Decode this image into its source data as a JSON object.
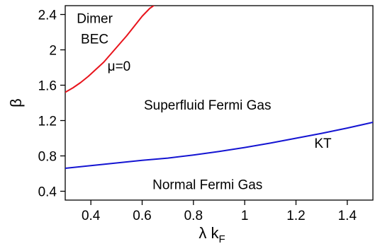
{
  "chart_data": {
    "type": "line",
    "title": "",
    "xlabel": "λ k",
    "xlabel_subscript": "F",
    "ylabel": "β",
    "xlim": [
      0.3,
      1.5
    ],
    "ylim": [
      0.3,
      2.5
    ],
    "grid": false,
    "xticks": [
      {
        "value": 0.4,
        "label": "0.4"
      },
      {
        "value": 0.6,
        "label": "0.6"
      },
      {
        "value": 0.8,
        "label": "0.8"
      },
      {
        "value": 1.0,
        "label": "1"
      },
      {
        "value": 1.2,
        "label": "1.2"
      },
      {
        "value": 1.4,
        "label": "1.4"
      }
    ],
    "yticks": [
      {
        "value": 0.4,
        "label": "0.4"
      },
      {
        "value": 0.8,
        "label": "0.8"
      },
      {
        "value": 1.2,
        "label": "1.2"
      },
      {
        "value": 1.6,
        "label": "1.6"
      },
      {
        "value": 2.0,
        "label": "2"
      },
      {
        "value": 2.4,
        "label": "2.4"
      }
    ],
    "series": [
      {
        "color": "#e8141c",
        "points": [
          [
            0.3,
            1.52
          ],
          [
            0.33,
            1.57
          ],
          [
            0.36,
            1.63
          ],
          [
            0.39,
            1.7
          ],
          [
            0.42,
            1.78
          ],
          [
            0.45,
            1.86
          ],
          [
            0.48,
            1.96
          ],
          [
            0.51,
            2.06
          ],
          [
            0.54,
            2.16
          ],
          [
            0.57,
            2.27
          ],
          [
            0.6,
            2.38
          ],
          [
            0.63,
            2.47
          ],
          [
            0.645,
            2.5
          ]
        ]
      },
      {
        "color": "#1414d2",
        "points": [
          [
            0.3,
            0.66
          ],
          [
            0.4,
            0.69
          ],
          [
            0.5,
            0.72
          ],
          [
            0.6,
            0.75
          ],
          [
            0.7,
            0.775
          ],
          [
            0.8,
            0.81
          ],
          [
            0.9,
            0.85
          ],
          [
            1.0,
            0.895
          ],
          [
            1.1,
            0.945
          ],
          [
            1.2,
            1.0
          ],
          [
            1.3,
            1.055
          ],
          [
            1.4,
            1.115
          ],
          [
            1.5,
            1.18
          ]
        ]
      }
    ],
    "annotations": [
      {
        "text": "Dimer",
        "x": 0.415,
        "y": 2.36
      },
      {
        "text": "BEC",
        "x": 0.415,
        "y": 2.13
      },
      {
        "text": "μ=0",
        "x": 0.51,
        "y": 1.82
      },
      {
        "text": "Superfluid Fermi Gas",
        "x": 0.855,
        "y": 1.38
      },
      {
        "text": "KT",
        "x": 1.305,
        "y": 0.95
      },
      {
        "text": "Normal Fermi Gas",
        "x": 0.855,
        "y": 0.48
      }
    ]
  }
}
